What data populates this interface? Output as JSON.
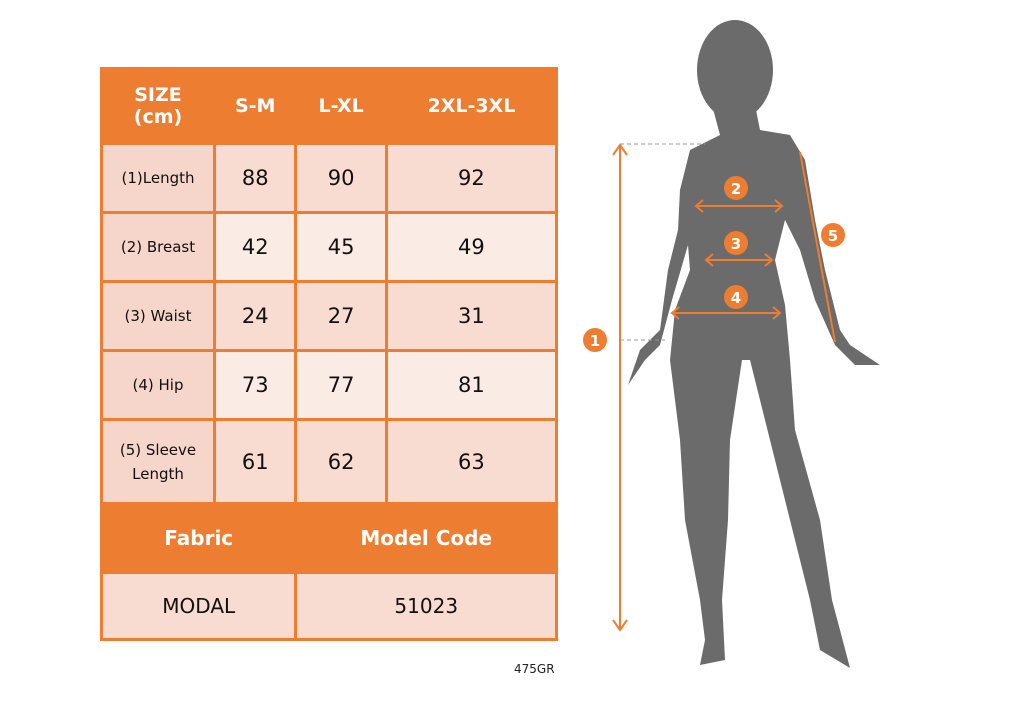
{
  "header": {
    "size": "SIZE",
    "unit": "(cm)",
    "columns": [
      "S-M",
      "L-XL",
      "2XL-3XL"
    ]
  },
  "rows": [
    {
      "label": "(1)Length",
      "values": [
        "88",
        "90",
        "92"
      ]
    },
    {
      "label": "(2) Breast",
      "values": [
        "42",
        "45",
        "49"
      ]
    },
    {
      "label": "(3) Waist",
      "values": [
        "24",
        "27",
        "31"
      ]
    },
    {
      "label": "(4) Hip",
      "values": [
        "73",
        "77",
        "81"
      ]
    },
    {
      "label": "(5) Sleeve Length",
      "values": [
        "61",
        "62",
        "63"
      ]
    }
  ],
  "footer": {
    "fabric_label": "Fabric",
    "model_code_label": "Model Code",
    "fabric": "MODAL",
    "model_code": "51023"
  },
  "code": "475GR",
  "markers": [
    "1",
    "2",
    "3",
    "4",
    "5"
  ],
  "colors": {
    "accent": "#ed7d31",
    "silhouette": "#6b6b6b",
    "row_dark": "#f8dbd1",
    "row_light": "#fbebe5"
  }
}
